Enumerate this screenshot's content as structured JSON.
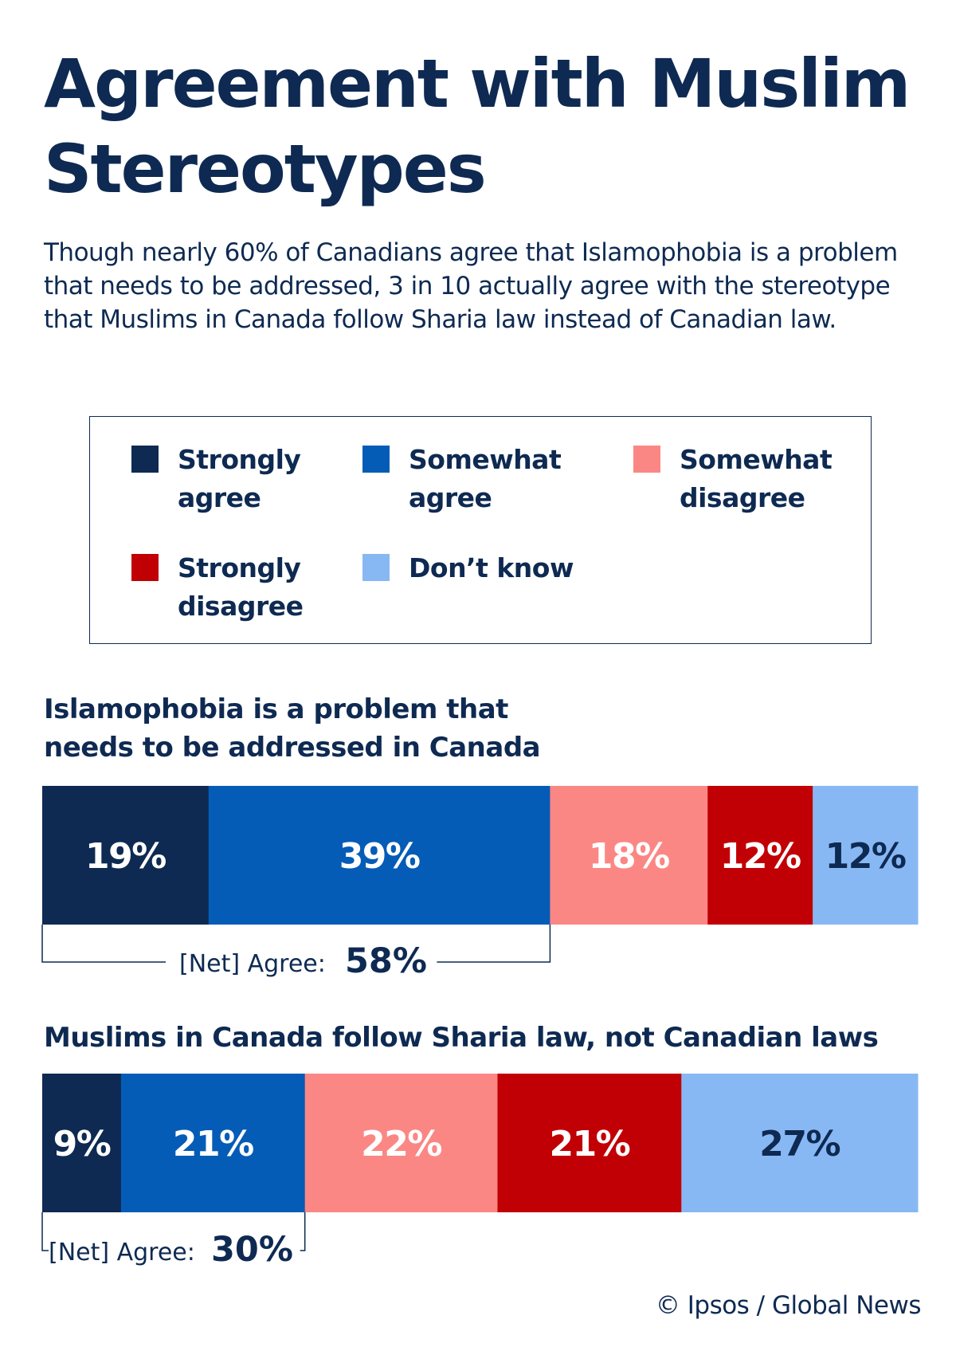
{
  "header": {
    "title": "Agreement with Muslim Stereotypes",
    "subtitle": "Though nearly 60% of Canadians agree that Islamophobia is a problem that needs to be addressed, 3 in 10 actually agree with the stereotype that Muslims in Canada follow Sharia law instead of Canadian law."
  },
  "legend": {
    "items": [
      {
        "label": "Strongly agree",
        "color": "#0e2a52"
      },
      {
        "label": "Somewhat agree",
        "color": "#045cb7"
      },
      {
        "label": "Somewhat disagree",
        "color": "#fb8785"
      },
      {
        "label": "Strongly disagree",
        "color": "#c10005"
      },
      {
        "label": "Don’t know",
        "color": "#88b8f4"
      }
    ]
  },
  "chart_data": [
    {
      "type": "bar",
      "orientation": "horizontal-stacked-100",
      "title": "Islamophobia is a problem that needs to be addressed in Canada",
      "categories": [
        "Strongly agree",
        "Somewhat agree",
        "Somewhat disagree",
        "Strongly disagree",
        "Don’t know"
      ],
      "values": [
        19,
        39,
        18,
        12,
        12
      ],
      "value_labels": [
        "19%",
        "39%",
        "18%",
        "12%",
        "12%"
      ],
      "colors": [
        "#0e2a52",
        "#045cb7",
        "#fb8785",
        "#c10005",
        "#88b8f4"
      ],
      "net": {
        "label": "[Net] Agree:",
        "value": "58%"
      }
    },
    {
      "type": "bar",
      "orientation": "horizontal-stacked-100",
      "title": "Muslims in Canada follow Sharia law, not Canadian laws",
      "categories": [
        "Strongly agree",
        "Somewhat agree",
        "Somewhat disagree",
        "Strongly disagree",
        "Don’t know"
      ],
      "values": [
        9,
        21,
        22,
        21,
        27
      ],
      "value_labels": [
        "9%",
        "21%",
        "22%",
        "21%",
        "27%"
      ],
      "colors": [
        "#0e2a52",
        "#045cb7",
        "#fb8785",
        "#c10005",
        "#88b8f4"
      ],
      "net": {
        "label": "[Net] Agree:",
        "value": "30%"
      }
    }
  ],
  "footer": {
    "credit": "© Ipsos / Global News"
  }
}
